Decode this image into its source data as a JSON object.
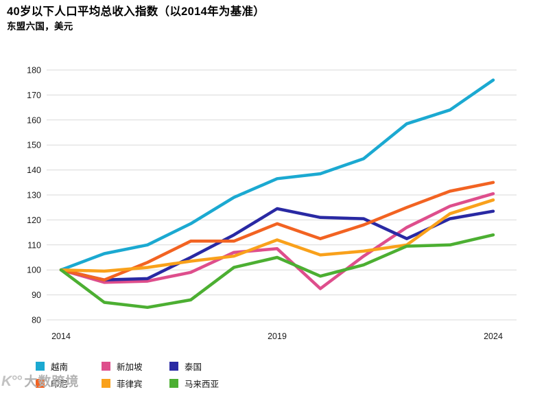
{
  "header": {
    "title": "40岁以下人口平均总收入指数（以2014年为基准）",
    "subtitle": "东盟六国，美元"
  },
  "chart_data": {
    "type": "line",
    "x": [
      2014,
      2015,
      2016,
      2017,
      2018,
      2019,
      2020,
      2021,
      2022,
      2023,
      2024
    ],
    "x_tick_labels": [
      "2014",
      "2019",
      "2024"
    ],
    "y_ticks": [
      80,
      90,
      100,
      110,
      120,
      130,
      140,
      150,
      160,
      170,
      180
    ],
    "ylim": [
      80,
      180
    ],
    "grid": "horizontal",
    "legend_position": "bottom-left",
    "baseline_note": "all series indexed to 100 in 2014",
    "series": [
      {
        "id": "vietnam",
        "name": "越南",
        "color": "#1BA9D1",
        "values": [
          100,
          106.5,
          110,
          118.5,
          129,
          136.5,
          138.5,
          144.5,
          158.5,
          164,
          176
        ]
      },
      {
        "id": "singapore",
        "name": "新加坡",
        "color": "#DE4E8C",
        "values": [
          100,
          95,
          95.5,
          99,
          107,
          108.5,
          92.5,
          105.5,
          117,
          125.5,
          130.5
        ]
      },
      {
        "id": "thailand",
        "name": "泰国",
        "color": "#2929A3",
        "values": [
          100,
          96,
          96.5,
          105,
          114,
          124.5,
          121,
          120.5,
          112.5,
          120.5,
          123.5
        ]
      },
      {
        "id": "indonesia",
        "name": "印尼",
        "color": "#F26322",
        "values": [
          100,
          96,
          103,
          111.5,
          111.5,
          118.5,
          112.5,
          118,
          125,
          131.5,
          135
        ]
      },
      {
        "id": "philippines",
        "name": "菲律宾",
        "color": "#F9A11B",
        "values": [
          100,
          99.5,
          101,
          103.5,
          105.5,
          112,
          106,
          107.5,
          110,
          122.5,
          128
        ]
      },
      {
        "id": "malaysia",
        "name": "马来西亚",
        "color": "#4CAF32",
        "values": [
          100,
          87,
          85,
          88,
          101,
          105,
          97.5,
          102,
          109.5,
          110,
          114
        ]
      }
    ]
  },
  "watermark": {
    "logo": "K°°",
    "text": "大数跨境"
  }
}
